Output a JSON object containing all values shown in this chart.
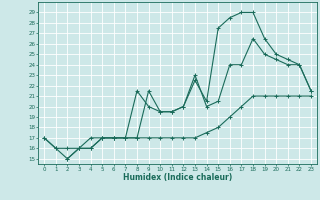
{
  "title": "",
  "xlabel": "Humidex (Indice chaleur)",
  "ylabel": "",
  "bg_color": "#cde8e8",
  "line_color": "#1a6b5a",
  "grid_color": "#ffffff",
  "ylim": [
    14.5,
    30.0
  ],
  "xlim": [
    -0.5,
    23.5
  ],
  "yticks": [
    15,
    16,
    17,
    18,
    19,
    20,
    21,
    22,
    23,
    24,
    25,
    26,
    27,
    28,
    29
  ],
  "xticks": [
    0,
    1,
    2,
    3,
    4,
    5,
    6,
    7,
    8,
    9,
    10,
    11,
    12,
    13,
    14,
    15,
    16,
    17,
    18,
    19,
    20,
    21,
    22,
    23
  ],
  "line1_x": [
    0,
    1,
    2,
    3,
    4,
    5,
    6,
    7,
    8,
    9,
    10,
    11,
    12,
    13,
    14,
    15,
    16,
    17,
    18,
    19,
    20,
    21,
    22,
    23
  ],
  "line1_y": [
    17,
    16,
    16,
    16,
    17,
    17,
    17,
    17,
    17,
    17,
    17,
    17,
    17,
    17,
    17.5,
    18,
    19,
    20,
    21,
    21,
    21,
    21,
    21,
    21
  ],
  "line2_x": [
    0,
    1,
    2,
    3,
    4,
    5,
    6,
    7,
    8,
    9,
    10,
    11,
    12,
    13,
    14,
    15,
    16,
    17,
    18,
    19,
    20,
    21,
    22,
    23
  ],
  "line2_y": [
    17,
    16,
    15,
    16,
    16,
    17,
    17,
    17,
    21.5,
    20,
    19.5,
    19.5,
    20,
    23,
    20,
    20.5,
    24,
    24,
    26.5,
    25,
    24.5,
    24,
    24,
    21.5
  ],
  "line3_x": [
    2,
    3,
    4,
    5,
    6,
    7,
    8,
    9,
    10,
    11,
    12,
    13,
    14,
    15,
    16,
    17,
    18,
    19,
    20,
    21,
    22,
    23
  ],
  "line3_y": [
    15,
    16,
    16,
    17,
    17,
    17,
    17,
    21.5,
    19.5,
    19.5,
    20,
    22.5,
    20.5,
    27.5,
    28.5,
    29,
    29,
    26.5,
    25,
    24.5,
    24,
    21.5
  ]
}
